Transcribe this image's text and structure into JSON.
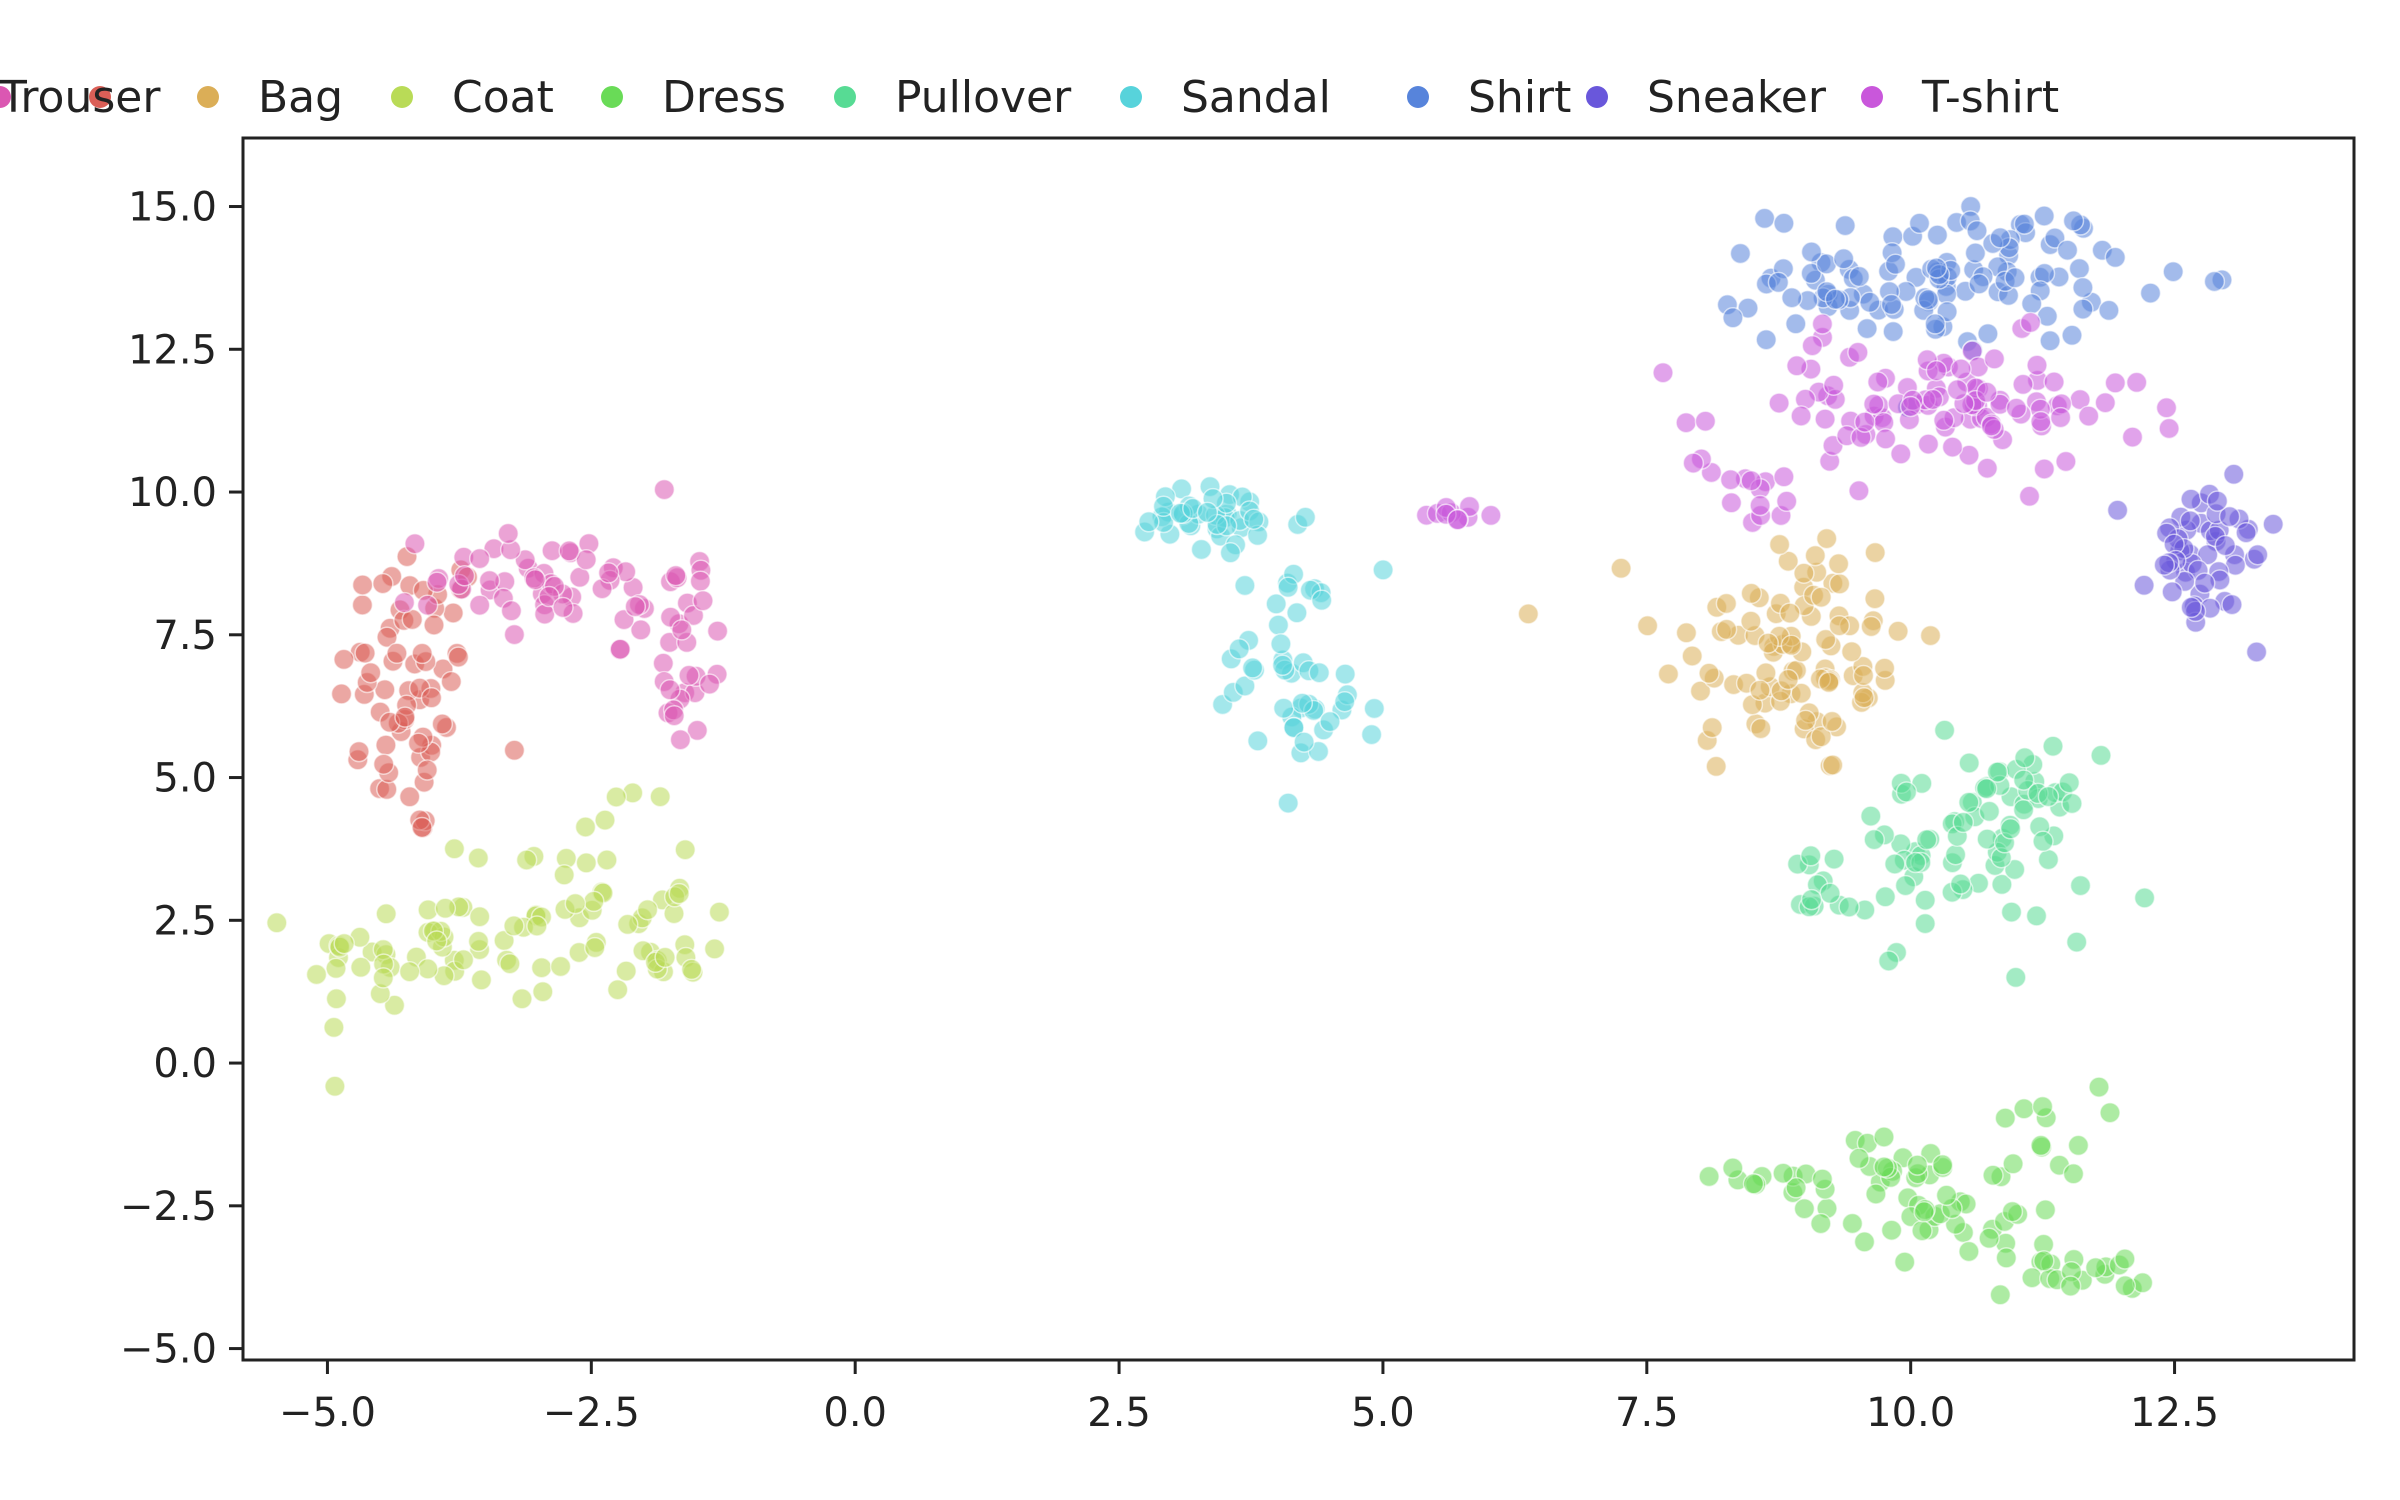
{
  "chart_data": {
    "type": "scatter",
    "title": "",
    "xlabel": "",
    "ylabel": "",
    "xlim": [
      -5.8,
      14.2
    ],
    "ylim": [
      -5.2,
      16.2
    ],
    "x_ticks": [
      -5.0,
      -2.5,
      0.0,
      2.5,
      5.0,
      7.5,
      10.0,
      12.5
    ],
    "x_tick_labels": [
      "−5.0",
      "−2.5",
      "0.0",
      "2.5",
      "5.0",
      "7.5",
      "10.0",
      "12.5"
    ],
    "y_ticks": [
      -5.0,
      -2.5,
      0.0,
      2.5,
      5.0,
      7.5,
      10.0,
      12.5,
      15.0
    ],
    "y_tick_labels": [
      "−5.0",
      "−2.5",
      "0.0",
      "2.5",
      "5.0",
      "7.5",
      "10.0",
      "12.5",
      "15.0"
    ],
    "grid": false,
    "legend_position": "top",
    "series": [
      {
        "name": "",
        "color": "#db5f57",
        "clusters": [
          {
            "cx": -4.2,
            "cy": 6.5,
            "sx": 0.35,
            "sy": 1.4,
            "n": 70
          }
        ]
      },
      {
        "name": "Bag",
        "color": "#dbae57",
        "clusters": [
          {
            "cx": 8.8,
            "cy": 7.3,
            "sx": 0.6,
            "sy": 1.2,
            "n": 80
          },
          {
            "cx": 9.2,
            "cy": 6.8,
            "sx": 0.4,
            "sy": 0.6,
            "n": 20
          }
        ]
      },
      {
        "name": "Coat",
        "color": "#b9db57",
        "clusters": [
          {
            "cx": -4.0,
            "cy": 1.9,
            "sx": 0.6,
            "sy": 0.55,
            "n": 50
          },
          {
            "cx": -2.6,
            "cy": 2.8,
            "sx": 0.55,
            "sy": 0.8,
            "n": 45
          },
          {
            "cx": -1.8,
            "cy": 1.7,
            "sx": 0.3,
            "sy": 0.3,
            "n": 10
          }
        ]
      },
      {
        "name": "Dress",
        "color": "#69db57",
        "clusters": [
          {
            "cx": 9.6,
            "cy": -2.0,
            "sx": 0.6,
            "sy": 0.35,
            "n": 35
          },
          {
            "cx": 10.5,
            "cy": -2.6,
            "sx": 0.5,
            "sy": 0.45,
            "n": 30
          },
          {
            "cx": 11.3,
            "cy": -1.2,
            "sx": 0.25,
            "sy": 0.4,
            "n": 12
          },
          {
            "cx": 11.5,
            "cy": -3.7,
            "sx": 0.4,
            "sy": 0.2,
            "n": 20
          }
        ]
      },
      {
        "name": "Pullover",
        "color": "#57db94",
        "clusters": [
          {
            "cx": 10.4,
            "cy": 3.8,
            "sx": 0.65,
            "sy": 0.8,
            "n": 75
          },
          {
            "cx": 11.2,
            "cy": 4.5,
            "sx": 0.3,
            "sy": 0.4,
            "n": 15
          },
          {
            "cx": 9.2,
            "cy": 2.9,
            "sx": 0.25,
            "sy": 0.15,
            "n": 8
          }
        ]
      },
      {
        "name": "Sandal",
        "color": "#57d3db",
        "clusters": [
          {
            "cx": 3.4,
            "cy": 9.5,
            "sx": 0.45,
            "sy": 0.3,
            "n": 40
          },
          {
            "cx": 4.1,
            "cy": 7.3,
            "sx": 0.3,
            "sy": 1.0,
            "n": 40
          },
          {
            "cx": 4.5,
            "cy": 6.0,
            "sx": 0.2,
            "sy": 0.4,
            "n": 12
          }
        ]
      },
      {
        "name": "Shirt",
        "color": "#5784db",
        "clusters": [
          {
            "cx": 10.4,
            "cy": 13.8,
            "sx": 0.85,
            "sy": 0.6,
            "n": 110
          },
          {
            "cx": 8.9,
            "cy": 13.3,
            "sx": 0.3,
            "sy": 0.3,
            "n": 10
          }
        ]
      },
      {
        "name": "Sneaker",
        "color": "#6957db",
        "clusters": [
          {
            "cx": 12.8,
            "cy": 9.0,
            "sx": 0.35,
            "sy": 0.6,
            "n": 45
          },
          {
            "cx": 12.6,
            "cy": 8.2,
            "sx": 0.3,
            "sy": 0.3,
            "n": 10
          }
        ]
      },
      {
        "name": "T-shirt",
        "color": "#c957db",
        "clusters": [
          {
            "cx": 10.2,
            "cy": 11.5,
            "sx": 1.0,
            "sy": 0.6,
            "n": 110
          },
          {
            "cx": 8.5,
            "cy": 10.1,
            "sx": 0.3,
            "sy": 0.4,
            "n": 12
          },
          {
            "cx": 5.6,
            "cy": 9.6,
            "sx": 0.25,
            "sy": 0.08,
            "n": 10
          }
        ]
      },
      {
        "name": "Trouser",
        "color": "#db57b2",
        "clusters": [
          {
            "cx": -2.8,
            "cy": 8.5,
            "sx": 0.6,
            "sy": 0.45,
            "n": 55
          },
          {
            "cx": -1.7,
            "cy": 7.2,
            "sx": 0.3,
            "sy": 0.9,
            "n": 30
          }
        ]
      }
    ]
  }
}
